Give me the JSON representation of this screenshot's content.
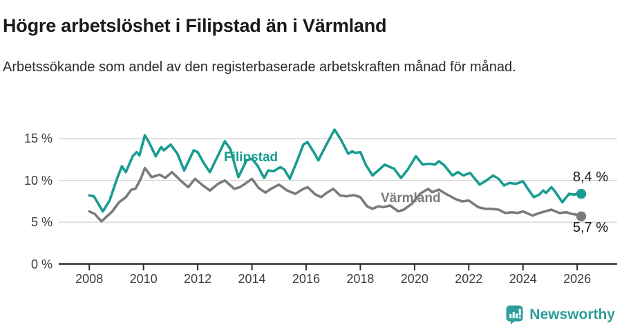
{
  "header": {
    "title": "Högre arbetslöshet i Filipstad än i Värmland",
    "subtitle": "Arbetssökande som andel av den registerbaserade arbetskraften månad för månad."
  },
  "chart_data": {
    "type": "line",
    "title": "Högre arbetslöshet i Filipstad än i Värmland",
    "subtitle": "Arbetssökande som andel av den registerbaserade arbetskraften månad för månad.",
    "grid": true,
    "legend_position": "inline-labels",
    "x": {
      "tick_values": [
        2008,
        2010,
        2012,
        2014,
        2016,
        2018,
        2020,
        2022,
        2024,
        2026
      ],
      "tick_labels": [
        "2008",
        "2010",
        "2012",
        "2014",
        "2016",
        "2018",
        "2020",
        "2022",
        "2024",
        "2026"
      ],
      "range": [
        2006.9,
        2027.5
      ]
    },
    "y": {
      "tick_values": [
        0,
        5,
        10,
        15
      ],
      "tick_labels": [
        "0 %",
        "5 %",
        "10 %",
        "15 %"
      ],
      "range": [
        0,
        16.6
      ],
      "unit": "%"
    },
    "series": [
      {
        "name": "Filipstad",
        "key": "filipstad",
        "color": "#189c90",
        "end_label": "8,4 %",
        "end_value": 8.4,
        "points": [
          [
            2008.0,
            8.2
          ],
          [
            2008.17,
            8.1
          ],
          [
            2008.5,
            6.3
          ],
          [
            2008.75,
            7.6
          ],
          [
            2009.0,
            10.0
          ],
          [
            2009.2,
            11.7
          ],
          [
            2009.35,
            11.0
          ],
          [
            2009.6,
            12.9
          ],
          [
            2009.75,
            13.4
          ],
          [
            2009.85,
            13.0
          ],
          [
            2010.05,
            15.4
          ],
          [
            2010.2,
            14.6
          ],
          [
            2010.45,
            12.9
          ],
          [
            2010.65,
            14.0
          ],
          [
            2010.75,
            13.6
          ],
          [
            2011.0,
            14.3
          ],
          [
            2011.25,
            13.2
          ],
          [
            2011.5,
            11.2
          ],
          [
            2011.85,
            13.6
          ],
          [
            2012.0,
            13.4
          ],
          [
            2012.2,
            12.2
          ],
          [
            2012.45,
            11.0
          ],
          [
            2012.75,
            13.0
          ],
          [
            2013.0,
            14.7
          ],
          [
            2013.2,
            13.8
          ],
          [
            2013.5,
            10.4
          ],
          [
            2013.8,
            12.4
          ],
          [
            2014.0,
            12.6
          ],
          [
            2014.2,
            11.8
          ],
          [
            2014.45,
            10.3
          ],
          [
            2014.6,
            11.2
          ],
          [
            2014.8,
            11.1
          ],
          [
            2015.05,
            11.6
          ],
          [
            2015.2,
            11.3
          ],
          [
            2015.4,
            10.2
          ],
          [
            2015.65,
            12.2
          ],
          [
            2015.9,
            14.3
          ],
          [
            2016.05,
            14.6
          ],
          [
            2016.3,
            13.3
          ],
          [
            2016.45,
            12.4
          ],
          [
            2016.7,
            14.0
          ],
          [
            2017.05,
            16.1
          ],
          [
            2017.3,
            14.8
          ],
          [
            2017.55,
            13.2
          ],
          [
            2017.7,
            13.5
          ],
          [
            2017.8,
            13.3
          ],
          [
            2018.0,
            13.4
          ],
          [
            2018.2,
            11.9
          ],
          [
            2018.45,
            10.6
          ],
          [
            2018.9,
            11.9
          ],
          [
            2019.1,
            11.6
          ],
          [
            2019.25,
            11.4
          ],
          [
            2019.5,
            10.3
          ],
          [
            2019.75,
            11.3
          ],
          [
            2020.05,
            12.9
          ],
          [
            2020.3,
            11.9
          ],
          [
            2020.55,
            12.0
          ],
          [
            2020.75,
            11.9
          ],
          [
            2020.9,
            12.3
          ],
          [
            2021.1,
            11.8
          ],
          [
            2021.4,
            10.6
          ],
          [
            2021.6,
            11.0
          ],
          [
            2021.8,
            10.6
          ],
          [
            2022.05,
            10.9
          ],
          [
            2022.4,
            9.5
          ],
          [
            2022.65,
            10.0
          ],
          [
            2022.9,
            10.6
          ],
          [
            2023.1,
            10.2
          ],
          [
            2023.3,
            9.4
          ],
          [
            2023.5,
            9.7
          ],
          [
            2023.75,
            9.6
          ],
          [
            2024.0,
            9.9
          ],
          [
            2024.2,
            8.9
          ],
          [
            2024.4,
            8.0
          ],
          [
            2024.6,
            8.3
          ],
          [
            2024.75,
            8.8
          ],
          [
            2024.85,
            8.5
          ],
          [
            2025.05,
            9.2
          ],
          [
            2025.2,
            8.6
          ],
          [
            2025.45,
            7.4
          ],
          [
            2025.7,
            8.4
          ],
          [
            2025.9,
            8.3
          ],
          [
            2026.05,
            8.5
          ],
          [
            2026.15,
            8.4
          ]
        ]
      },
      {
        "name": "Värmland",
        "key": "varmland",
        "color": "#7b7b7b",
        "end_label": "5,7 %",
        "end_value": 5.7,
        "points": [
          [
            2008.0,
            6.3
          ],
          [
            2008.2,
            6.0
          ],
          [
            2008.45,
            5.1
          ],
          [
            2008.85,
            6.3
          ],
          [
            2009.1,
            7.4
          ],
          [
            2009.35,
            8.0
          ],
          [
            2009.55,
            8.9
          ],
          [
            2009.7,
            9.0
          ],
          [
            2009.9,
            10.2
          ],
          [
            2010.05,
            11.5
          ],
          [
            2010.3,
            10.4
          ],
          [
            2010.6,
            10.7
          ],
          [
            2010.8,
            10.3
          ],
          [
            2011.05,
            11.0
          ],
          [
            2011.4,
            9.9
          ],
          [
            2011.65,
            9.2
          ],
          [
            2011.9,
            10.2
          ],
          [
            2012.15,
            9.5
          ],
          [
            2012.45,
            8.8
          ],
          [
            2012.75,
            9.6
          ],
          [
            2013.0,
            10.0
          ],
          [
            2013.35,
            9.0
          ],
          [
            2013.55,
            9.2
          ],
          [
            2013.75,
            9.6
          ],
          [
            2014.0,
            10.2
          ],
          [
            2014.25,
            9.1
          ],
          [
            2014.5,
            8.55
          ],
          [
            2014.7,
            9.0
          ],
          [
            2015.0,
            9.5
          ],
          [
            2015.3,
            8.8
          ],
          [
            2015.6,
            8.4
          ],
          [
            2015.9,
            9.0
          ],
          [
            2016.05,
            9.2
          ],
          [
            2016.35,
            8.3
          ],
          [
            2016.55,
            8.0
          ],
          [
            2016.75,
            8.5
          ],
          [
            2017.0,
            9.0
          ],
          [
            2017.25,
            8.2
          ],
          [
            2017.5,
            8.1
          ],
          [
            2017.75,
            8.25
          ],
          [
            2018.0,
            8.0
          ],
          [
            2018.25,
            6.9
          ],
          [
            2018.45,
            6.6
          ],
          [
            2018.65,
            6.9
          ],
          [
            2018.85,
            6.8
          ],
          [
            2019.1,
            7.0
          ],
          [
            2019.4,
            6.3
          ],
          [
            2019.6,
            6.5
          ],
          [
            2019.9,
            7.2
          ],
          [
            2020.2,
            8.4
          ],
          [
            2020.5,
            9.0
          ],
          [
            2020.65,
            8.6
          ],
          [
            2020.9,
            8.9
          ],
          [
            2021.1,
            8.5
          ],
          [
            2021.5,
            7.8
          ],
          [
            2021.75,
            7.5
          ],
          [
            2022.0,
            7.6
          ],
          [
            2022.35,
            6.8
          ],
          [
            2022.6,
            6.6
          ],
          [
            2022.85,
            6.6
          ],
          [
            2023.1,
            6.5
          ],
          [
            2023.35,
            6.1
          ],
          [
            2023.6,
            6.2
          ],
          [
            2023.8,
            6.1
          ],
          [
            2024.0,
            6.3
          ],
          [
            2024.35,
            5.8
          ],
          [
            2024.7,
            6.2
          ],
          [
            2025.05,
            6.5
          ],
          [
            2025.35,
            6.1
          ],
          [
            2025.6,
            6.2
          ],
          [
            2025.8,
            6.0
          ],
          [
            2026.0,
            5.9
          ],
          [
            2026.15,
            5.7
          ]
        ]
      }
    ],
    "colors": {
      "filipstad": "#189c90",
      "varmland": "#7b7b7b",
      "gridline": "#d8d8d8",
      "axis": "#2b2b2b"
    }
  },
  "footer": {
    "brand": "Newsworthy",
    "brand_color": "#2f9d99",
    "logo_icon": "speech-bubble-bar-chart-icon"
  }
}
